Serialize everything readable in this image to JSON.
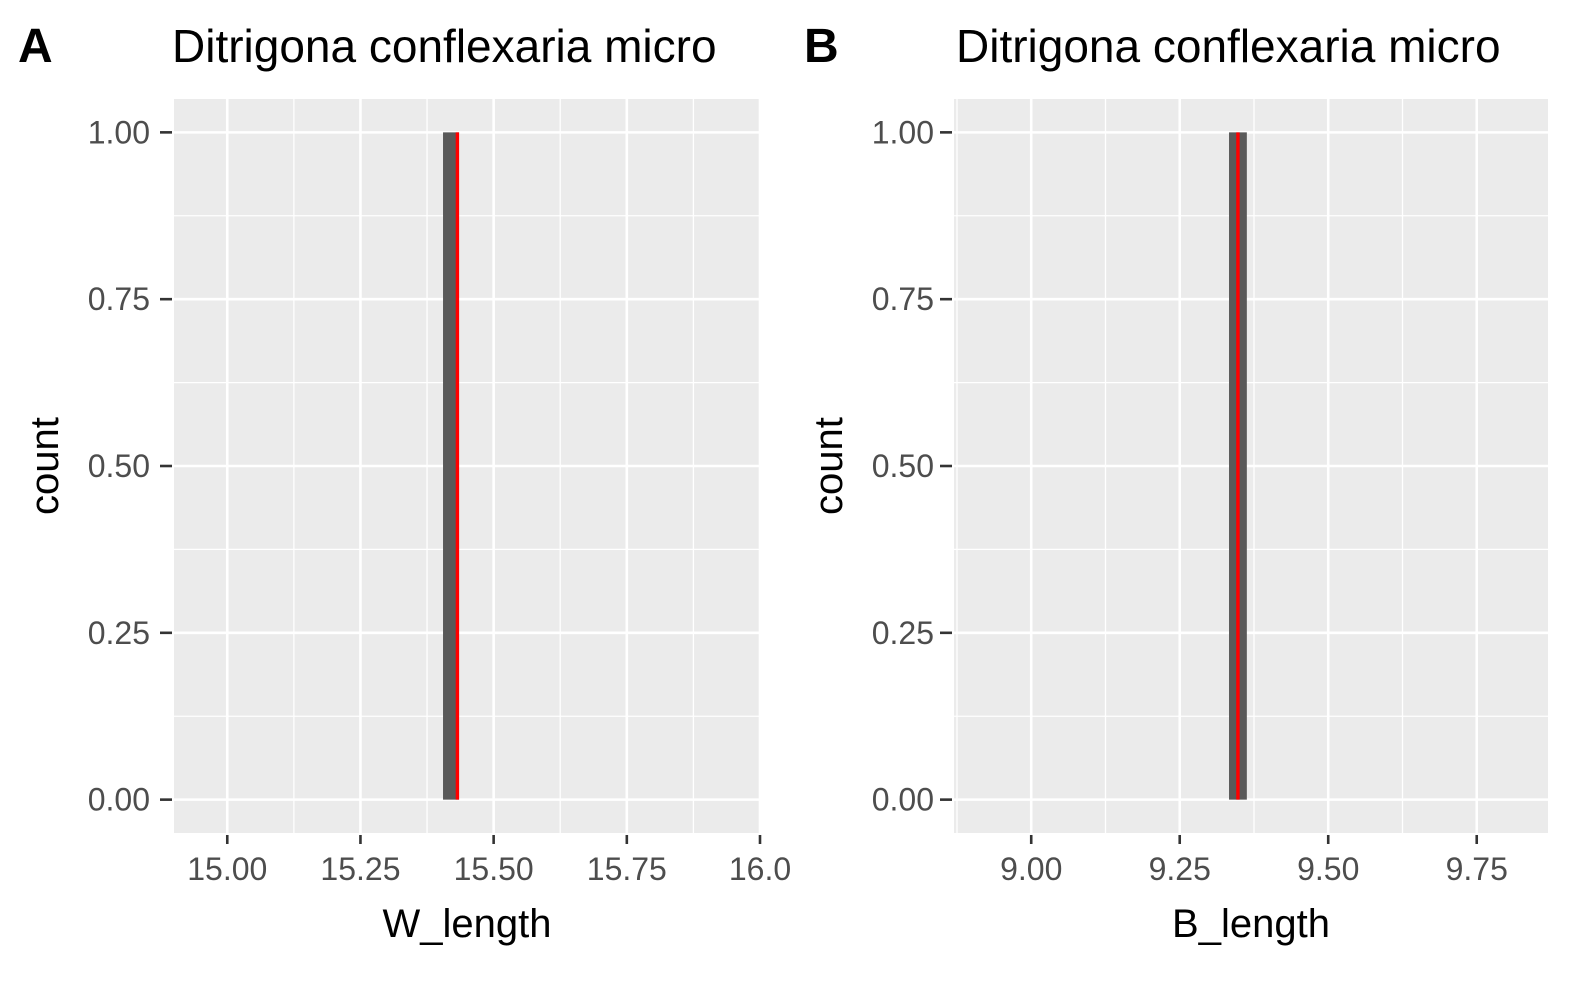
{
  "chart_data": [
    {
      "type": "bar",
      "panel_label": "A",
      "title": "Ditrigona conflexaria micro",
      "xlabel": "W_length",
      "ylabel": "count",
      "xlim": [
        14.9,
        16.0
      ],
      "ylim": [
        -0.05,
        1.05
      ],
      "x_ticks": [
        15.0,
        15.25,
        15.5,
        15.75,
        16.0
      ],
      "x_tick_labels": [
        "15.00",
        "15.25",
        "15.50",
        "15.75",
        "16.0"
      ],
      "y_ticks": [
        0,
        0.25,
        0.5,
        0.75,
        1.0
      ],
      "y_tick_labels": [
        "0.00",
        "0.25",
        "0.50",
        "0.75",
        "1.00"
      ],
      "bins": [
        {
          "xmin": 15.405,
          "xmax": 15.435,
          "count": 1
        }
      ],
      "mean_line": {
        "x": 15.432,
        "color": "#ff0000"
      },
      "bar_color": "#595959",
      "grid": true
    },
    {
      "type": "bar",
      "panel_label": "B",
      "title": "Ditrigona conflexaria micro",
      "xlabel": "B_length",
      "ylabel": "count",
      "xlim": [
        8.87,
        9.87
      ],
      "ylim": [
        -0.05,
        1.05
      ],
      "x_ticks": [
        9.0,
        9.25,
        9.5,
        9.75
      ],
      "x_tick_labels": [
        "9.00",
        "9.25",
        "9.50",
        "9.75"
      ],
      "y_ticks": [
        0,
        0.25,
        0.5,
        0.75,
        1.0
      ],
      "y_tick_labels": [
        "0.00",
        "0.25",
        "0.50",
        "0.75",
        "1.00"
      ],
      "bins": [
        {
          "xmin": 9.333,
          "xmax": 9.363,
          "count": 1
        }
      ],
      "mean_line": {
        "x": 9.348,
        "color": "#ff0000"
      },
      "bar_color": "#595959",
      "grid": true
    }
  ]
}
